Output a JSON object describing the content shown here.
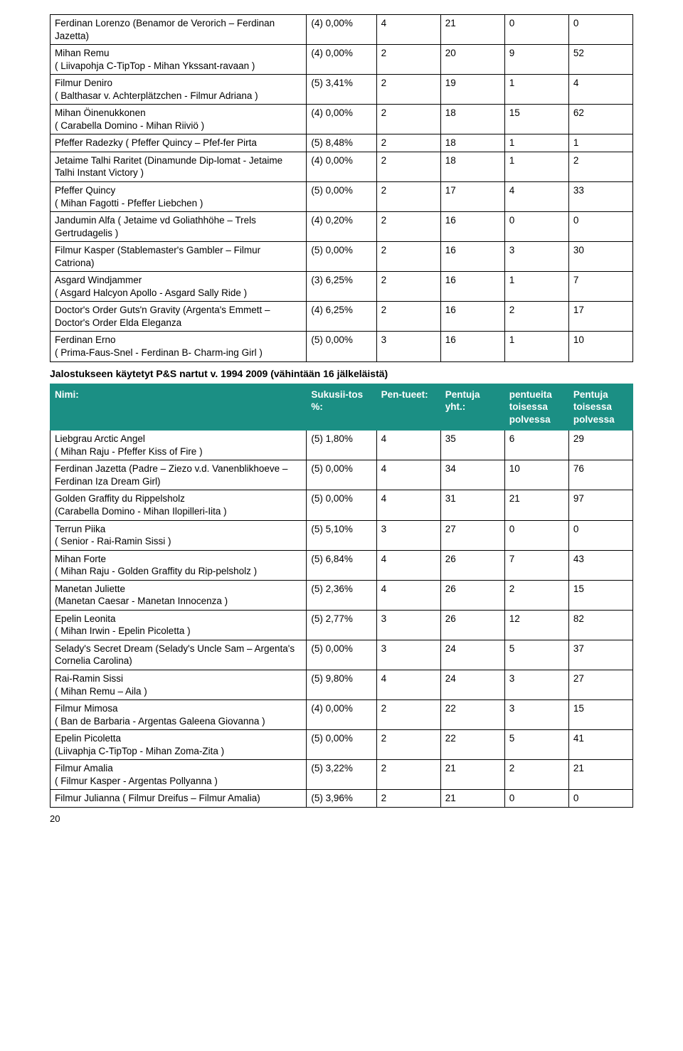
{
  "table1": {
    "rows": [
      [
        "Ferdinan Lorenzo (Benamor de Verorich – Ferdinan Jazetta)",
        "(4) 0,00%",
        "4",
        "21",
        "0",
        "0"
      ],
      [
        "Mihan Remu\n( Liivapohja C-TipTop - Mihan Ykssant-ravaan )",
        "(4) 0,00%",
        "2",
        "20",
        "9",
        "52"
      ],
      [
        "Filmur Deniro\n( Balthasar v. Achterplätzchen - Filmur Adriana )",
        "(5) 3,41%",
        "2",
        "19",
        "1",
        "4"
      ],
      [
        "Mihan Öinenukkonen\n( Carabella Domino - Mihan Riiviö )",
        "(4) 0,00%",
        "2",
        "18",
        "15",
        "62"
      ],
      [
        "Pfeffer Radezky ( Pfeffer Quincy – Pfef-fer Pirta",
        "(5) 8,48%",
        "2",
        "18",
        "1",
        "1"
      ],
      [
        "Jetaime Talhi Raritet (Dinamunde Dip-lomat - Jetaime Talhi Instant Victory )",
        "(4) 0,00%",
        "2",
        "18",
        "1",
        "2"
      ],
      [
        "Pfeffer Quincy\n( Mihan Fagotti - Pfeffer Liebchen )",
        "(5) 0,00%",
        "2",
        "17",
        "4",
        "33"
      ],
      [
        "Jandumin Alfa ( Jetaime vd Goliathhöhe – Trels Gertrudagelis )",
        "(4) 0,20%",
        "2",
        "16",
        "0",
        "0"
      ],
      [
        "Filmur Kasper (Stablemaster's Gambler – Filmur Catriona)",
        "(5) 0,00%",
        "2",
        "16",
        "3",
        "30"
      ],
      [
        "Asgard Windjammer\n( Asgard Halcyon Apollo - Asgard Sally Ride )",
        "(3) 6,25%",
        "2",
        "16",
        "1",
        "7"
      ],
      [
        "Doctor's Order Guts'n Gravity (Argenta's Emmett – Doctor's Order Elda Eleganza",
        "(4) 6,25%",
        "2",
        "16",
        "2",
        "17"
      ],
      [
        "Ferdinan Erno\n( Prima-Faus-Snel - Ferdinan B- Charm-ing Girl )",
        "(5) 0,00%",
        "3",
        "16",
        "1",
        "10"
      ]
    ]
  },
  "section2_title": "Jalostukseen käytetyt P&S nartut v. 1994 2009 (vähintään 16 jälkeläistä)",
  "table2": {
    "header": [
      "Nimi:",
      "Sukusii-tos %:",
      "Pen-tueet:",
      "Pentuja yht.:",
      "pentueita toisessa polvessa",
      "Pentuja toisessa polvessa"
    ],
    "rows": [
      [
        "Liebgrau Arctic Angel\n( Mihan Raju - Pfeffer Kiss of Fire )",
        "(5) 1,80%",
        "4",
        "35",
        "6",
        "29"
      ],
      [
        "Ferdinan Jazetta (Padre – Ziezo v.d. Vanenblikhoeve – Ferdinan Iza Dream Girl)",
        "(5) 0,00%",
        "4",
        "34",
        "10",
        "76"
      ],
      [
        "Golden Graffity du Rippelsholz\n(Carabella Domino - Mihan Ilopilleri-Iita )",
        "(5) 0,00%",
        "4",
        "31",
        "21",
        "97"
      ],
      [
        "Terrun Piika\n( Senior - Rai-Ramin Sissi )",
        "(5) 5,10%",
        "3",
        "27",
        "0",
        "0"
      ],
      [
        "Mihan Forte\n( Mihan Raju - Golden Graffity du Rip-pelsholz )",
        "(5) 6,84%",
        "4",
        "26",
        "7",
        "43"
      ],
      [
        "Manetan Juliette\n(Manetan Caesar - Manetan Innocenza )",
        "(5) 2,36%",
        "4",
        "26",
        "2",
        "15"
      ],
      [
        "Epelin Leonita\n( Mihan Irwin - Epelin Picoletta )",
        "(5) 2,77%",
        "3",
        "26",
        "12",
        "82"
      ],
      [
        "Selady's Secret Dream (Selady's Uncle Sam – Argenta's Cornelia Carolina)",
        "(5) 0,00%",
        "3",
        "24",
        "5",
        "37"
      ],
      [
        "Rai-Ramin Sissi\n( Mihan Remu – Aila )",
        "(5) 9,80%",
        "4",
        "24",
        "3",
        "27"
      ],
      [
        "Filmur Mimosa\n( Ban de Barbaria - Argentas Galeena Giovanna )",
        "(4) 0,00%",
        "2",
        "22",
        "3",
        "15"
      ],
      [
        "Epelin Picoletta\n(Liivaphja C-TipTop - Mihan Zoma-Zita )",
        "(5) 0,00%",
        "2",
        "22",
        "5",
        "41"
      ],
      [
        "Filmur Amalia\n( Filmur Kasper - Argentas Pollyanna )",
        "(5) 3,22%",
        "2",
        "21",
        "2",
        "21"
      ],
      [
        "Filmur Julianna ( Filmur Dreifus – Filmur Amalia)",
        "(5) 3,96%",
        "2",
        "21",
        "0",
        "0"
      ]
    ]
  },
  "page_number": "20",
  "colors": {
    "header_bg": "#1b8f84",
    "header_text": "#ffffff",
    "border": "#000000"
  }
}
